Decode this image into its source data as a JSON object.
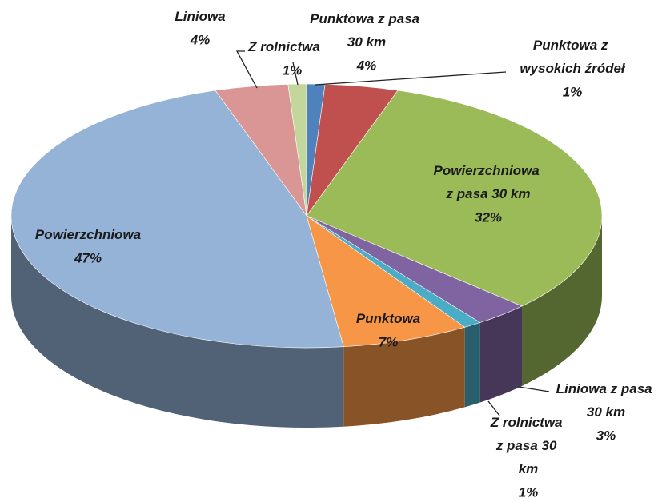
{
  "chart_data": {
    "type": "pie3d",
    "categories": [
      "Punktowa z wysokich źródeł",
      "Punktowa z pasa 30 km",
      "Powierzchniowa z pasa 30 km",
      "Liniowa z pasa 30 km",
      "Z rolnictwa z pasa 30 km",
      "Punktowa",
      "Powierzchniowa",
      "Liniowa",
      "Z rolnictwa"
    ],
    "values": [
      1,
      4,
      32,
      3,
      1,
      7,
      47,
      4,
      1
    ],
    "value_labels": [
      "1%",
      "4%",
      "32%",
      "3%",
      "1%",
      "7%",
      "47%",
      "4%",
      "1%"
    ],
    "colors": [
      "#4f81bd",
      "#c0504d",
      "#9bbb59",
      "#8064a2",
      "#4bacc6",
      "#f79646",
      "#95b3d7",
      "#d99694",
      "#c3d69b"
    ]
  }
}
